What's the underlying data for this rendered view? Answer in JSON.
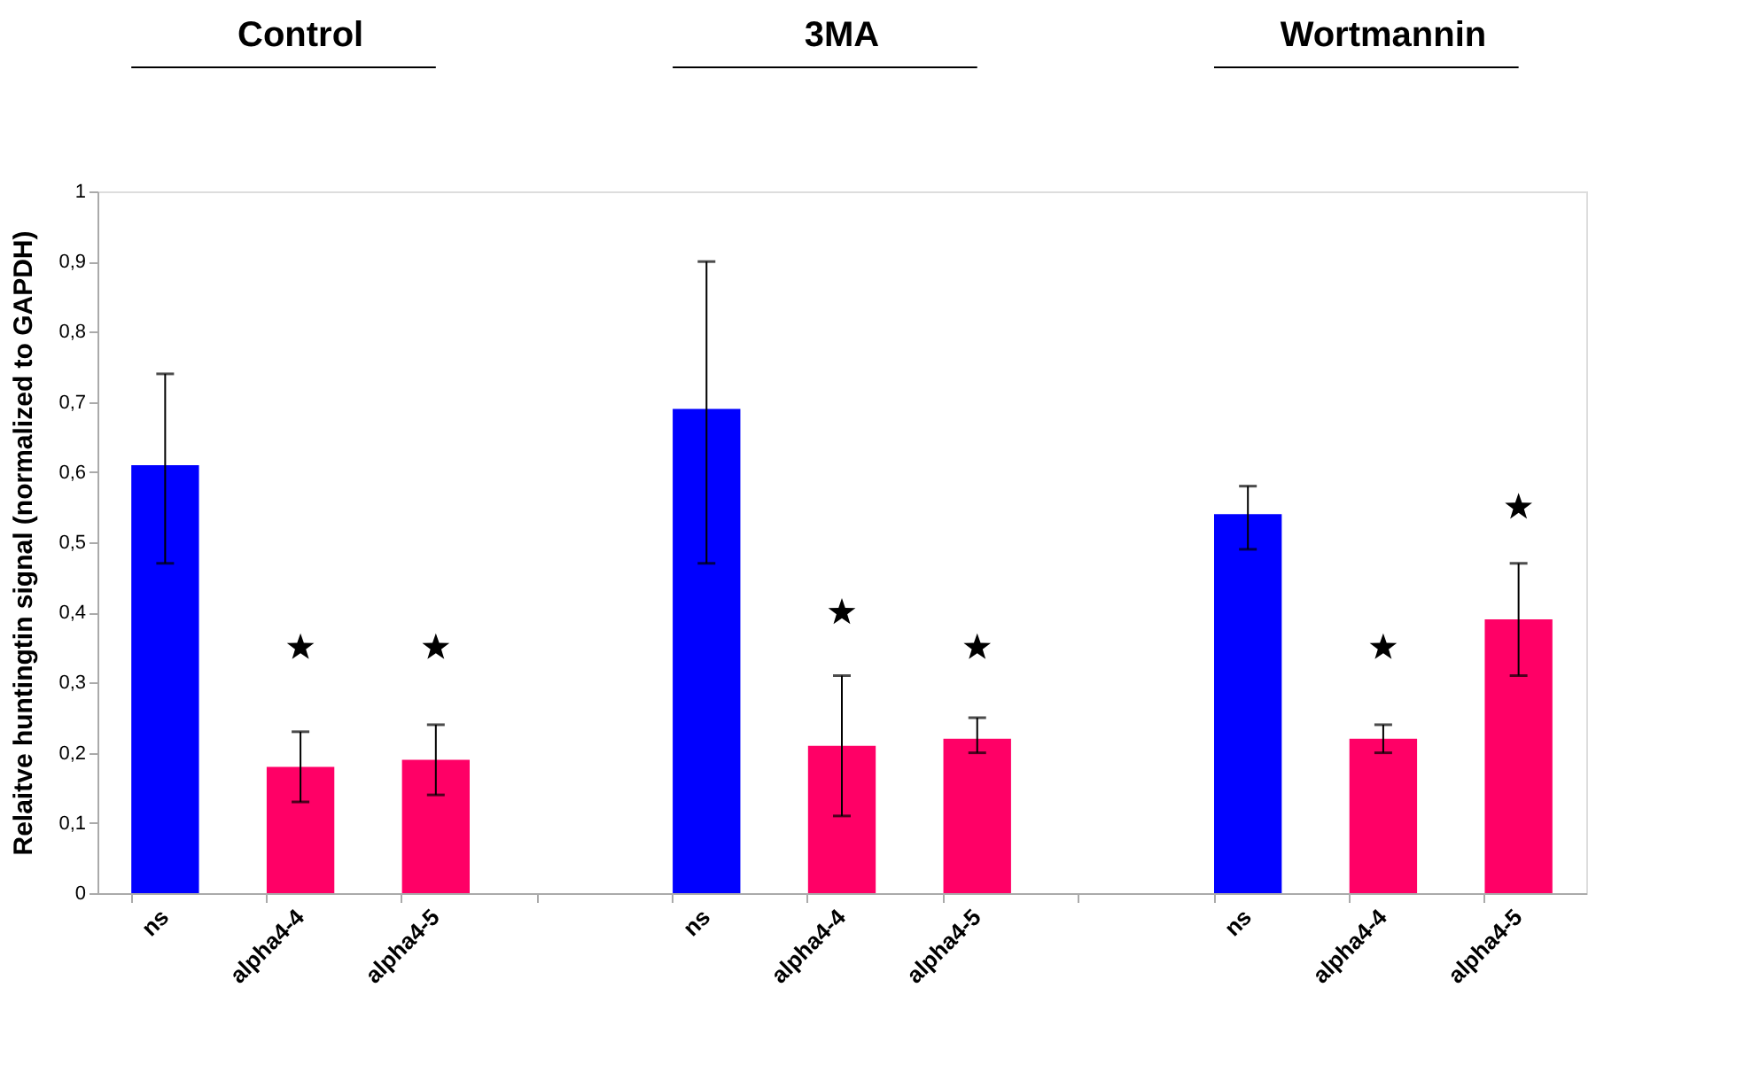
{
  "chart_data": {
    "type": "bar",
    "ylabel": "Relaitve huntingtin signal (normalized to GAPDH)",
    "categories": [
      "ns",
      "alpha4-4",
      "alpha4-5",
      null,
      "ns",
      "alpha4-4",
      "alpha4-5",
      null,
      "ns",
      "alpha4-4",
      "alpha4-5"
    ],
    "series": [
      {
        "colors": [
          "#0000ff",
          "#ff0066",
          "#ff0066",
          null,
          "#0000ff",
          "#ff0066",
          "#ff0066",
          null,
          "#0000ff",
          "#ff0066",
          "#ff0066"
        ],
        "values": [
          0.61,
          0.18,
          0.19,
          null,
          0.69,
          0.21,
          0.22,
          null,
          0.54,
          0.22,
          0.39
        ],
        "errors": [
          [
            0.47,
            0.74
          ],
          [
            0.13,
            0.23
          ],
          [
            0.14,
            0.24
          ],
          null,
          [
            0.47,
            0.9
          ],
          [
            0.11,
            0.31
          ],
          [
            0.2,
            0.25
          ],
          null,
          [
            0.49,
            0.58
          ],
          [
            0.2,
            0.24
          ],
          [
            0.31,
            0.47
          ]
        ]
      },
      {
        "type": "scatter",
        "marker": "star",
        "color": "#000000",
        "values": [
          null,
          0.35,
          0.35,
          null,
          null,
          0.4,
          0.35,
          null,
          null,
          0.35,
          0.55
        ]
      }
    ],
    "annotations": [
      "Control",
      "3MA",
      "Wortmannin"
    ],
    "ylim": [
      0,
      1
    ],
    "yticks": [
      0,
      {
        "value": 0.1,
        "label": "0,1"
      },
      {
        "value": 0.2,
        "label": "0,2"
      },
      {
        "value": 0.3,
        "label": "0,3"
      },
      {
        "value": 0.4,
        "label": "0,4"
      },
      {
        "value": 0.5,
        "label": "0,5"
      },
      {
        "value": 0.6,
        "label": "0,6"
      },
      {
        "value": 0.7,
        "label": "0,7"
      },
      {
        "value": 0.8,
        "label": "0,8"
      },
      {
        "value": 0.9,
        "label": "0,9"
      },
      1
    ],
    "grid": false
  }
}
